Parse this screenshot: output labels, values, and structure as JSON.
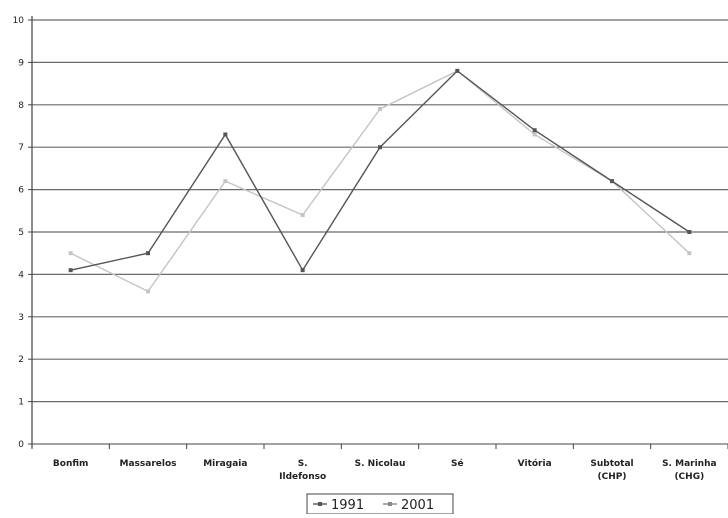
{
  "chart_data": {
    "type": "line",
    "categories": [
      [
        "Bonfim"
      ],
      [
        "Massarelos"
      ],
      [
        "Miragaia"
      ],
      [
        "S.",
        "Ildefonso"
      ],
      [
        "S. Nicolau"
      ],
      [
        "Sé"
      ],
      [
        "Vitória"
      ],
      [
        "Subtotal",
        "(CHP)"
      ],
      [
        "S. Marinha",
        "(CHG)"
      ]
    ],
    "series": [
      {
        "name": "1991",
        "color": "#555555",
        "values": [
          4.1,
          4.5,
          7.3,
          4.1,
          7.0,
          8.8,
          7.4,
          6.2,
          5.0
        ]
      },
      {
        "name": "2001",
        "color": "#c4c4c4",
        "values": [
          4.5,
          3.6,
          6.2,
          5.4,
          7.9,
          8.8,
          7.3,
          6.2,
          4.5
        ]
      }
    ],
    "ylim": [
      0,
      10
    ],
    "yticks": [
      "0",
      "1",
      "2",
      "3",
      "4",
      "5",
      "6",
      "7",
      "8",
      "9",
      "10"
    ],
    "grid": true,
    "legend_position": "bottom-center",
    "xlabel": "",
    "ylabel": "",
    "title": ""
  }
}
